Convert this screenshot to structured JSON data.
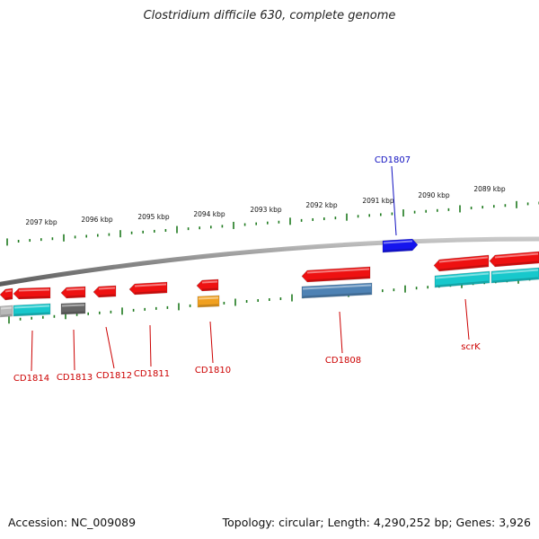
{
  "title": "Clostridium difficile 630, complete genome",
  "footer": {
    "accession": "Accession: NC_009089",
    "summary": "Topology: circular; Length: 4,290,252 bp; Genes: 3,926"
  },
  "colors": {
    "backbone": "#8c8c8c",
    "ticks": "#1e7a1e",
    "forward_label": "#1010c0",
    "reverse_label": "#cc0000",
    "gene_red": "#ee1111",
    "gene_cyan": "#18c8cc",
    "gene_gray": "#666666",
    "gene_lightgray": "#b8b8b8",
    "gene_orange": "#f0a020",
    "gene_steel": "#4e82b4",
    "gene_blue": "#1515ee"
  },
  "scale": {
    "kbp_labels": [
      "2097 kbp",
      "2096 kbp",
      "2095 kbp",
      "2094 kbp",
      "2093 kbp",
      "2092 kbp",
      "2091 kbp",
      "2090 kbp",
      "2089 kbp"
    ]
  },
  "gene_labels": {
    "forward": [
      "CD1807"
    ],
    "reverse": [
      "CD1814",
      "CD1813",
      "CD1812",
      "CD1811",
      "CD1810",
      "CD1808",
      "scrK"
    ]
  }
}
